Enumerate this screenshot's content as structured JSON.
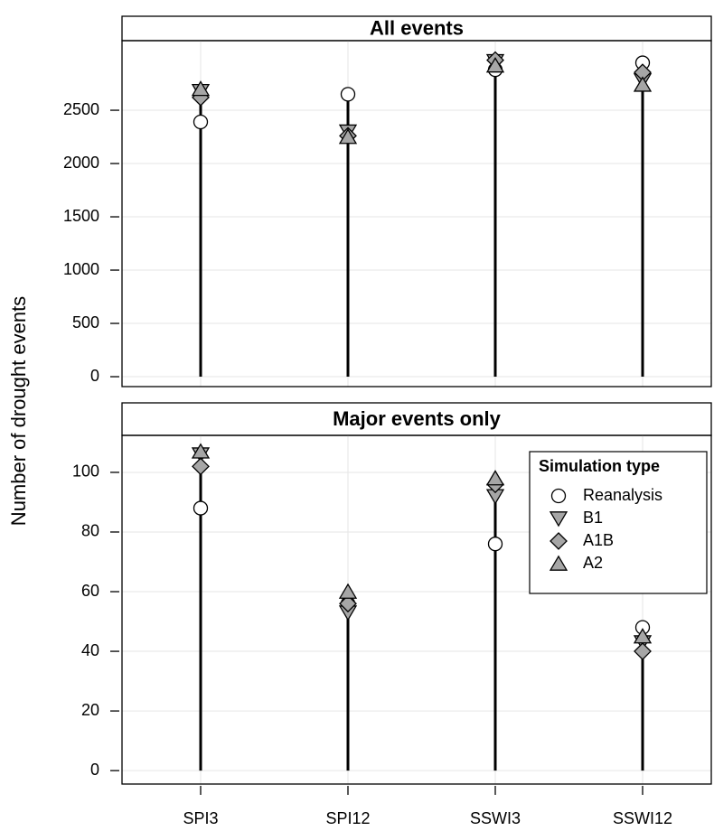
{
  "y_label": "Number of drought events",
  "chart_data": [
    {
      "type": "stem",
      "title": "All events",
      "ylim": [
        -93,
        3153
      ],
      "yticks": [
        0,
        500,
        1000,
        1500,
        2000,
        2500
      ],
      "grid": true,
      "series": [
        {
          "name": "Reanalysis",
          "marker": "circle",
          "color": "#ffffff",
          "values": [
            2390,
            2650,
            2880,
            2945
          ]
        },
        {
          "name": "B1",
          "marker": "triangle-down",
          "color": "#a6a6a6",
          "values": [
            2680,
            2300,
            2960,
            2780
          ]
        },
        {
          "name": "A1B",
          "marker": "diamond",
          "color": "#a6a6a6",
          "values": [
            2620,
            2260,
            2970,
            2855
          ]
        },
        {
          "name": "A2",
          "marker": "triangle-up",
          "color": "#a6a6a6",
          "values": [
            2700,
            2250,
            2920,
            2740
          ]
        }
      ]
    },
    {
      "type": "stem",
      "title": "Major events only",
      "categories": [
        "SPI3",
        "SPI12",
        "SSWI3",
        "SSWI12"
      ],
      "ylim": [
        -4.5,
        112.4
      ],
      "yticks": [
        0,
        20,
        40,
        60,
        80,
        100
      ],
      "grid": true,
      "legend_title": "Simulation type",
      "legend": "upper right",
      "series": [
        {
          "name": "Reanalysis",
          "marker": "circle",
          "color": "#ffffff",
          "values": [
            88,
            56,
            76,
            48
          ]
        },
        {
          "name": "B1",
          "marker": "triangle-down",
          "color": "#a6a6a6",
          "values": [
            106,
            53,
            92,
            43
          ]
        },
        {
          "name": "A1B",
          "marker": "diamond",
          "color": "#a6a6a6",
          "values": [
            102,
            56,
            96,
            40
          ]
        },
        {
          "name": "A2",
          "marker": "triangle-up",
          "color": "#a6a6a6",
          "values": [
            107,
            60,
            98,
            45
          ]
        }
      ]
    }
  ]
}
